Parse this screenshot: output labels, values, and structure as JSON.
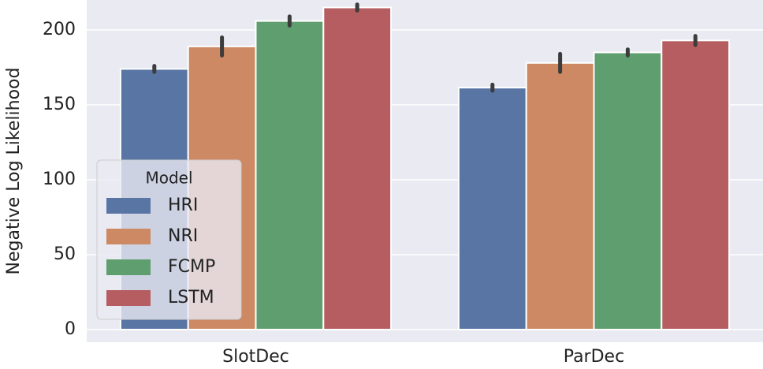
{
  "chart_data": {
    "type": "bar",
    "y_label": "Negative Log Likelihood",
    "categories": [
      "SlotDec",
      "ParDec"
    ],
    "series": [
      {
        "name": "HRI",
        "color": "#5975a4",
        "values": [
          174,
          161.5
        ],
        "errors": [
          2,
          2
        ]
      },
      {
        "name": "NRI",
        "color": "#cc8963",
        "values": [
          189,
          178
        ],
        "errors": [
          6,
          6
        ]
      },
      {
        "name": "FCMP",
        "color": "#5f9e6e",
        "values": [
          206,
          185
        ],
        "errors": [
          3,
          2
        ]
      },
      {
        "name": "LSTM",
        "color": "#b55d60",
        "values": [
          215,
          193
        ],
        "errors": [
          2,
          3
        ]
      }
    ],
    "legend_title": "Model",
    "legend": "lower left",
    "ylim": [
      0,
      220
    ],
    "yticks": [
      0,
      50,
      100,
      150,
      200
    ],
    "grid": true
  }
}
